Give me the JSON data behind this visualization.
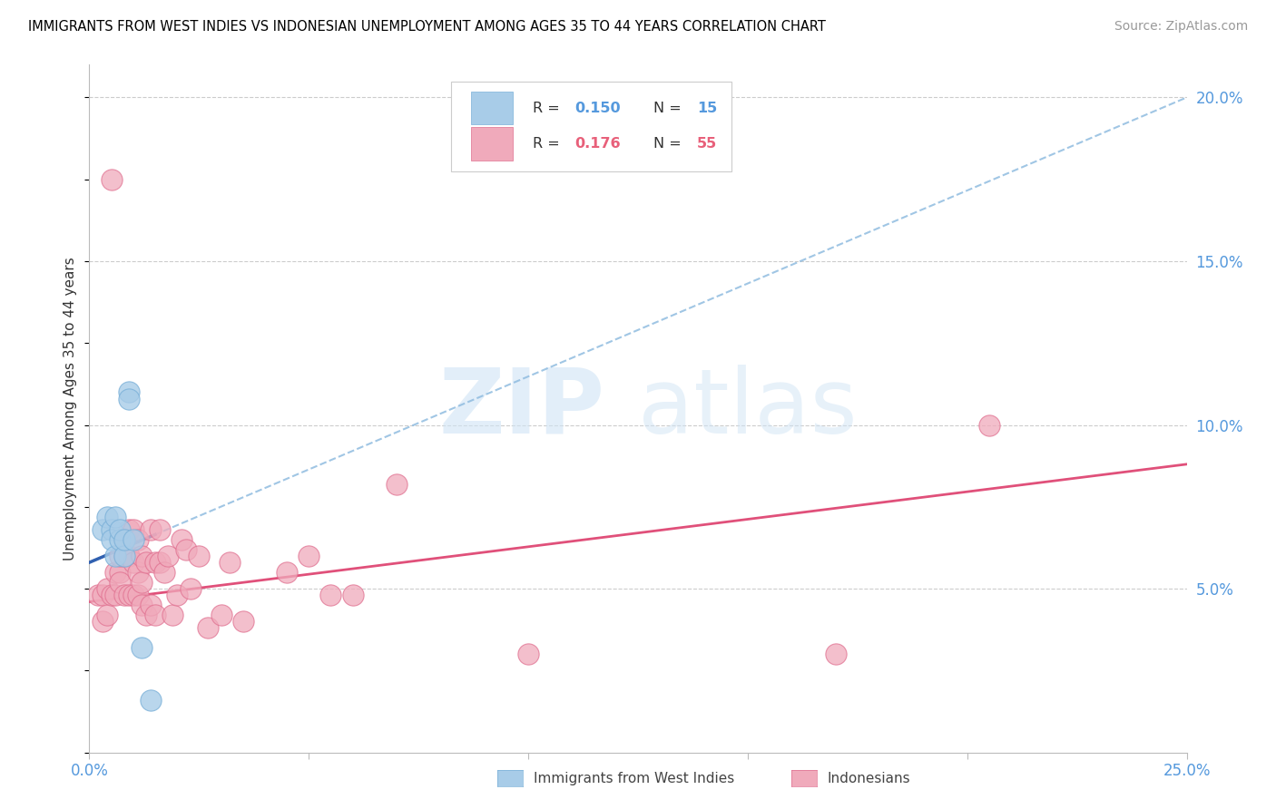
{
  "title": "IMMIGRANTS FROM WEST INDIES VS INDONESIAN UNEMPLOYMENT AMONG AGES 35 TO 44 YEARS CORRELATION CHART",
  "source": "Source: ZipAtlas.com",
  "ylabel": "Unemployment Among Ages 35 to 44 years",
  "xlim": [
    0.0,
    0.25
  ],
  "ylim": [
    0.0,
    0.21
  ],
  "watermark_zip": "ZIP",
  "watermark_atlas": "atlas",
  "legend_r1": "0.150",
  "legend_n1": "15",
  "legend_r2": "0.176",
  "legend_n2": "55",
  "blue_color": "#a8cce8",
  "blue_edge_color": "#7ab0d8",
  "pink_color": "#f0aabb",
  "pink_edge_color": "#e07090",
  "blue_line_color": "#3060b0",
  "pink_line_color": "#e0507a",
  "blue_dash_color": "#90bce0",
  "grid_color": "#cccccc",
  "background_color": "#ffffff",
  "west_indies_x": [
    0.003,
    0.004,
    0.005,
    0.005,
    0.006,
    0.006,
    0.007,
    0.007,
    0.008,
    0.008,
    0.009,
    0.009,
    0.01,
    0.012,
    0.014
  ],
  "west_indies_y": [
    0.068,
    0.072,
    0.068,
    0.065,
    0.06,
    0.072,
    0.065,
    0.068,
    0.06,
    0.065,
    0.11,
    0.108,
    0.065,
    0.032,
    0.016
  ],
  "indonesian_x": [
    0.002,
    0.003,
    0.003,
    0.004,
    0.004,
    0.005,
    0.005,
    0.006,
    0.006,
    0.007,
    0.007,
    0.007,
    0.008,
    0.008,
    0.008,
    0.009,
    0.009,
    0.009,
    0.01,
    0.01,
    0.01,
    0.011,
    0.011,
    0.011,
    0.012,
    0.012,
    0.012,
    0.013,
    0.013,
    0.014,
    0.014,
    0.015,
    0.015,
    0.016,
    0.016,
    0.017,
    0.018,
    0.019,
    0.02,
    0.021,
    0.022,
    0.023,
    0.025,
    0.027,
    0.03,
    0.032,
    0.035,
    0.045,
    0.05,
    0.055,
    0.06,
    0.07,
    0.1,
    0.17,
    0.205
  ],
  "indonesian_y": [
    0.048,
    0.048,
    0.04,
    0.05,
    0.042,
    0.048,
    0.175,
    0.055,
    0.048,
    0.055,
    0.052,
    0.06,
    0.06,
    0.065,
    0.048,
    0.068,
    0.06,
    0.048,
    0.068,
    0.058,
    0.048,
    0.065,
    0.055,
    0.048,
    0.06,
    0.052,
    0.045,
    0.058,
    0.042,
    0.068,
    0.045,
    0.058,
    0.042,
    0.068,
    0.058,
    0.055,
    0.06,
    0.042,
    0.048,
    0.065,
    0.062,
    0.05,
    0.06,
    0.038,
    0.042,
    0.058,
    0.04,
    0.055,
    0.06,
    0.048,
    0.048,
    0.082,
    0.03,
    0.03,
    0.1
  ]
}
